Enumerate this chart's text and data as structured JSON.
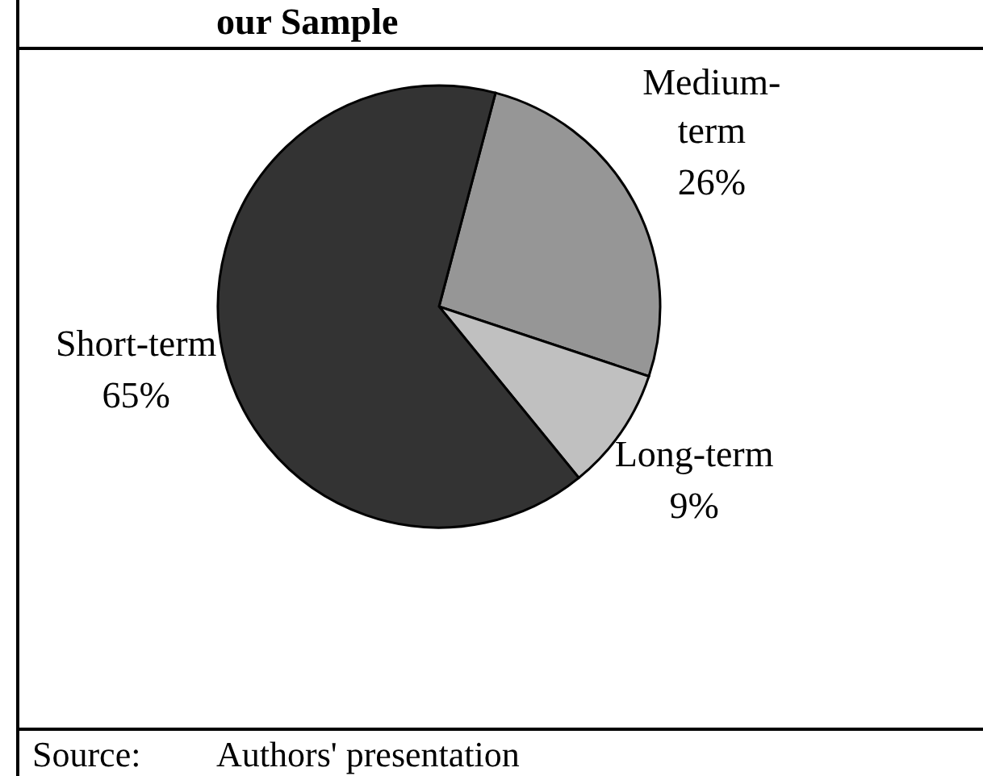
{
  "chart_data": {
    "type": "pie",
    "title": "our Sample",
    "categories": [
      "Medium-term",
      "Long-term",
      "Short-term"
    ],
    "values": [
      26,
      9,
      65
    ],
    "colors": [
      "#969696",
      "#c0c0c0",
      "#333333"
    ],
    "value_labels": [
      "26%",
      "9%",
      "65%"
    ],
    "annotations": [
      "Source: Authors' presentation"
    ],
    "legend": false
  }
}
